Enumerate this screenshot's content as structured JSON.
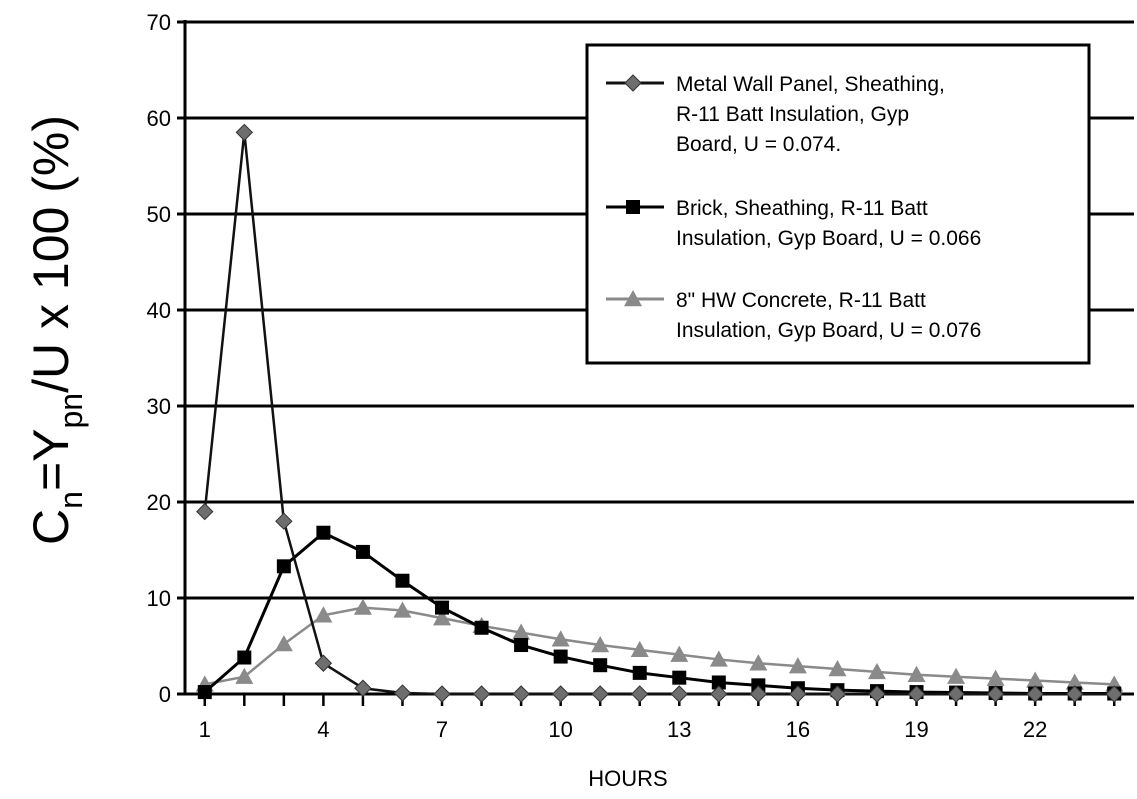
{
  "chart_data": {
    "type": "line",
    "xlabel": "HOURS",
    "ylabel": {
      "prefix": "C",
      "sub1": "n",
      "mid": "=Y",
      "sub2": "pn",
      "suffix": "/U x 100 (%)"
    },
    "xlim": [
      0.5,
      24.5
    ],
    "ylim": [
      0,
      70
    ],
    "xticks": [
      1,
      4,
      7,
      10,
      13,
      16,
      19,
      22
    ],
    "yticks": [
      0,
      10,
      20,
      30,
      40,
      50,
      60,
      70
    ],
    "grid": "horizontal",
    "legend_position": "top-right",
    "x": [
      1,
      2,
      3,
      4,
      5,
      6,
      7,
      8,
      9,
      10,
      11,
      12,
      13,
      14,
      15,
      16,
      17,
      18,
      19,
      20,
      21,
      22,
      23,
      24
    ],
    "series": [
      {
        "name_lines": [
          "Metal Wall Panel, Sheathing,",
          "R-11 Batt Insulation, Gyp",
          "Board, U = 0.074."
        ],
        "marker": "diamond",
        "color": "#6e6e6e",
        "line_color": "#111111",
        "values": [
          19,
          58.5,
          18,
          3.2,
          0.6,
          0.1,
          0,
          0,
          0,
          0,
          0,
          0,
          0,
          0,
          0,
          0,
          0,
          0,
          0,
          0,
          0,
          0,
          0,
          0
        ]
      },
      {
        "name_lines": [
          "Brick, Sheathing, R-11 Batt",
          "Insulation, Gyp Board, U = 0.066"
        ],
        "marker": "square",
        "color": "#000000",
        "line_color": "#000000",
        "values": [
          0.2,
          3.8,
          13.3,
          16.8,
          14.8,
          11.8,
          9.0,
          6.9,
          5.1,
          3.9,
          3.0,
          2.2,
          1.7,
          1.2,
          0.9,
          0.6,
          0.4,
          0.3,
          0.2,
          0.15,
          0.1,
          0.05,
          0.05,
          0.05
        ]
      },
      {
        "name_lines": [
          "8\" HW Concrete, R-11 Batt",
          "Insulation, Gyp Board, U = 0.076"
        ],
        "marker": "triangle",
        "color": "#8a8a8a",
        "line_color": "#8a8a8a",
        "values": [
          1.0,
          1.8,
          5.2,
          8.2,
          9.0,
          8.7,
          7.9,
          7.1,
          6.4,
          5.7,
          5.1,
          4.6,
          4.1,
          3.6,
          3.2,
          2.9,
          2.6,
          2.3,
          2.0,
          1.8,
          1.6,
          1.4,
          1.2,
          1.0
        ]
      }
    ]
  }
}
